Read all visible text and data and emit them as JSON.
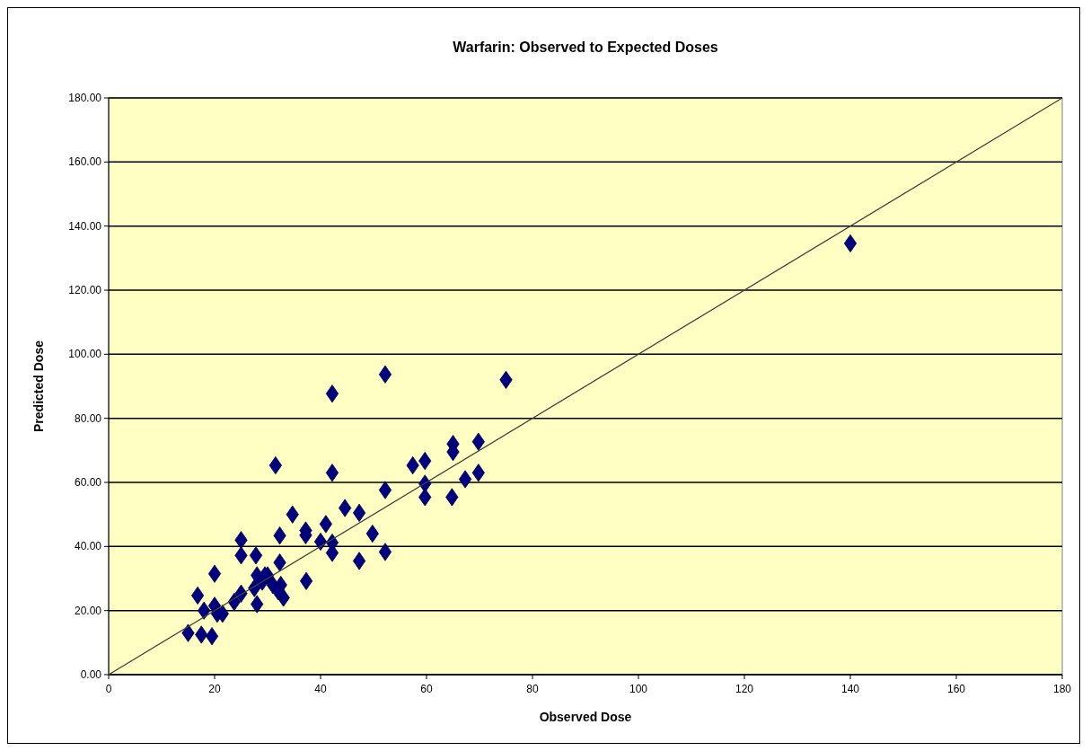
{
  "chart_data": {
    "type": "scatter",
    "title": "Warfarin: Observed to Expected Doses",
    "xlabel": "Observed Dose",
    "ylabel": "Predicted Dose",
    "xlim": [
      0,
      180
    ],
    "ylim": [
      0,
      180
    ],
    "xticks": [
      0,
      20,
      40,
      60,
      80,
      100,
      120,
      140,
      160,
      180
    ],
    "yticks": [
      {
        "value": 0,
        "label": "0.00"
      },
      {
        "value": 20,
        "label": "20.00"
      },
      {
        "value": 40,
        "label": "40.00"
      },
      {
        "value": 60,
        "label": "60.00"
      },
      {
        "value": 80,
        "label": "80.00"
      },
      {
        "value": 100,
        "label": "100.00"
      },
      {
        "value": 120,
        "label": "120.00"
      },
      {
        "value": 140,
        "label": "140.00"
      },
      {
        "value": 160,
        "label": "160.00"
      },
      {
        "value": 180,
        "label": "180.00"
      }
    ],
    "grid": "y",
    "marker": "diamond",
    "series": [
      {
        "color": "#000080",
        "x": [
          15,
          17.5,
          19.5,
          16.8,
          18,
          20,
          20,
          20.5,
          21.5,
          23.7,
          25,
          25,
          25,
          27.8,
          27.5,
          28,
          29,
          28,
          30,
          31,
          32.5,
          33,
          32,
          29.5,
          31.5,
          32.3,
          32.3,
          37.2,
          37.2,
          37.3,
          34.7,
          40,
          41,
          42.2,
          42.2,
          42.2,
          42.2,
          44.6,
          47.3,
          47.3,
          49.8,
          52.2,
          52.2,
          52.2,
          57.4,
          59.7,
          59.7,
          59.7,
          64.8,
          65,
          65,
          67.3,
          69.8,
          69.8,
          75,
          140
        ],
        "values": [
          13,
          12.5,
          12,
          24.7,
          20,
          31.5,
          21.5,
          19,
          19,
          22.7,
          25.3,
          42,
          37.2,
          37.2,
          27,
          31,
          29,
          22,
          31,
          28,
          28,
          24,
          26,
          31,
          65.3,
          43.4,
          35,
          45,
          43.5,
          29.2,
          50,
          41.5,
          47,
          41.2,
          38,
          87.7,
          63,
          52,
          35.5,
          50.5,
          44,
          93.7,
          57.6,
          38.3,
          65.3,
          66.7,
          59.6,
          55.4,
          55.4,
          72,
          69.5,
          61,
          72.7,
          63,
          92,
          134.6
        ]
      },
      {
        "type": "line",
        "color": "#404040",
        "marker": "none",
        "x": [
          0,
          180
        ],
        "values": [
          0,
          180
        ]
      }
    ]
  }
}
